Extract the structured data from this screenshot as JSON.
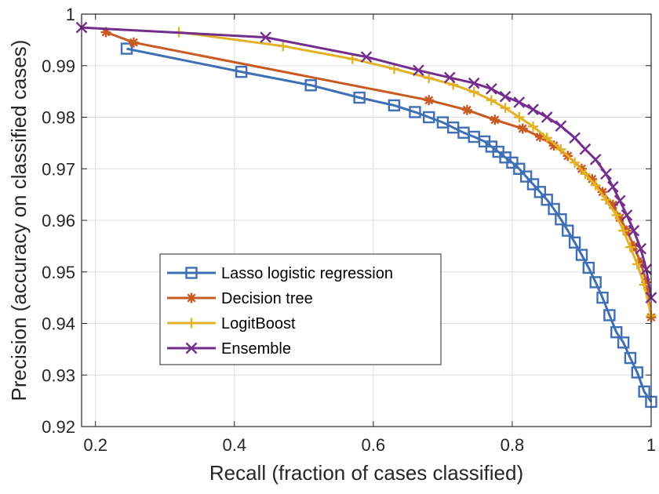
{
  "chart_data": {
    "type": "line",
    "title": "",
    "xlabel": "Recall (fraction of cases classified)",
    "ylabel": "Precision (accuracy on classified cases)",
    "xlim": [
      0.18,
      1.0
    ],
    "ylim": [
      0.92,
      1.0
    ],
    "xticks": [
      0.2,
      0.4,
      0.6,
      0.8,
      1.0
    ],
    "xtick_labels": [
      "0.2",
      "0.4",
      "0.6",
      "0.8",
      "1"
    ],
    "yticks": [
      0.92,
      0.93,
      0.94,
      0.95,
      0.96,
      0.97,
      0.98,
      0.99,
      1.0
    ],
    "ytick_labels": [
      "0.92",
      "0.93",
      "0.94",
      "0.95",
      "0.96",
      "0.97",
      "0.98",
      "0.99",
      "1"
    ],
    "grid": true,
    "legend_position": "lower-left",
    "series": [
      {
        "name": "Lasso logistic regression",
        "color": "#3f6fb5",
        "marker": "square",
        "x": [
          0.245,
          0.41,
          0.51,
          0.58,
          0.63,
          0.66,
          0.68,
          0.7,
          0.715,
          0.73,
          0.745,
          0.76,
          0.77,
          0.78,
          0.79,
          0.8,
          0.81,
          0.82,
          0.83,
          0.84,
          0.85,
          0.86,
          0.87,
          0.88,
          0.89,
          0.9,
          0.91,
          0.92,
          0.93,
          0.94,
          0.95,
          0.96,
          0.97,
          0.98,
          0.99,
          1.0
        ],
        "y": [
          0.9933,
          0.9888,
          0.9862,
          0.9838,
          0.9823,
          0.981,
          0.98,
          0.979,
          0.978,
          0.977,
          0.9762,
          0.9753,
          0.9743,
          0.9733,
          0.9722,
          0.9712,
          0.97,
          0.9685,
          0.967,
          0.9655,
          0.964,
          0.9622,
          0.9602,
          0.958,
          0.9557,
          0.9533,
          0.9508,
          0.948,
          0.945,
          0.9416,
          0.9383,
          0.9363,
          0.9333,
          0.9305,
          0.9268,
          0.9248
        ]
      },
      {
        "name": "Decision tree",
        "color": "#c95a22",
        "marker": "asterisk",
        "x": [
          0.215,
          0.255,
          0.68,
          0.735,
          0.775,
          0.815,
          0.84,
          0.86,
          0.88,
          0.9,
          0.915,
          0.93,
          0.945,
          0.955,
          0.965,
          0.975,
          0.985,
          0.993,
          1.0
        ],
        "y": [
          0.9965,
          0.9945,
          0.9833,
          0.9814,
          0.9795,
          0.9778,
          0.9762,
          0.9745,
          0.9725,
          0.97,
          0.968,
          0.9655,
          0.963,
          0.9605,
          0.958,
          0.955,
          0.9518,
          0.948,
          0.9412
        ]
      },
      {
        "name": "LogitBoost",
        "color": "#e3b125",
        "marker": "plus",
        "x": [
          0.32,
          0.47,
          0.57,
          0.63,
          0.68,
          0.715,
          0.745,
          0.77,
          0.79,
          0.81,
          0.83,
          0.85,
          0.87,
          0.89,
          0.905,
          0.92,
          0.935,
          0.95,
          0.96,
          0.97,
          0.98,
          0.99,
          1.0
        ],
        "y": [
          0.9965,
          0.9938,
          0.9913,
          0.9894,
          0.9876,
          0.9863,
          0.9849,
          0.9833,
          0.9818,
          0.98,
          0.9782,
          0.976,
          0.9738,
          0.9712,
          0.969,
          0.9668,
          0.964,
          0.961,
          0.958,
          0.9548,
          0.9515,
          0.9475,
          0.9415
        ]
      },
      {
        "name": "Ensemble",
        "color": "#742f8c",
        "marker": "x",
        "x": [
          0.18,
          0.445,
          0.59,
          0.665,
          0.71,
          0.745,
          0.77,
          0.79,
          0.81,
          0.83,
          0.85,
          0.87,
          0.89,
          0.905,
          0.92,
          0.935,
          0.945,
          0.955,
          0.965,
          0.975,
          0.985,
          0.993,
          1.0
        ],
        "y": [
          0.9974,
          0.9955,
          0.9917,
          0.9891,
          0.9877,
          0.9866,
          0.9855,
          0.984,
          0.9829,
          0.9815,
          0.98,
          0.9783,
          0.976,
          0.9738,
          0.9718,
          0.969,
          0.9665,
          0.9638,
          0.961,
          0.958,
          0.9545,
          0.9505,
          0.945
        ]
      }
    ]
  }
}
